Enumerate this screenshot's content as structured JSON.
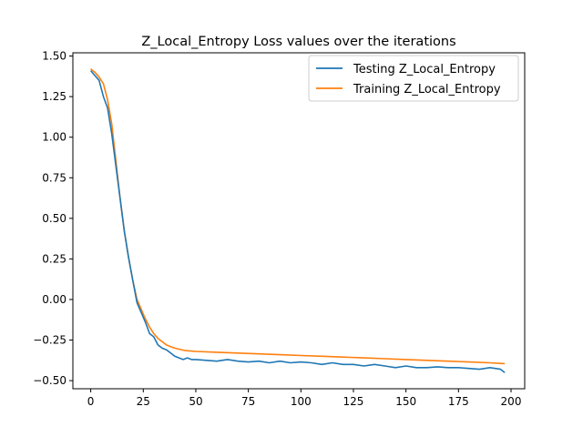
{
  "chart_data": {
    "type": "line",
    "title": "Z_Local_Entropy Loss values over the iterations",
    "xlabel": "",
    "ylabel": "",
    "xlim": [
      -8.5,
      206.5
    ],
    "ylim": [
      -0.55,
      1.52
    ],
    "xticks": [
      0,
      25,
      50,
      75,
      100,
      125,
      150,
      175,
      200
    ],
    "yticks": [
      -0.5,
      -0.25,
      0.0,
      0.25,
      0.5,
      0.75,
      1.0,
      1.25,
      1.5
    ],
    "xtick_labels": [
      "0",
      "25",
      "50",
      "75",
      "100",
      "125",
      "150",
      "175",
      "200"
    ],
    "ytick_labels": [
      "−0.50",
      "−0.25",
      "0.00",
      "0.25",
      "0.50",
      "0.75",
      "1.00",
      "1.25",
      "1.50"
    ],
    "grid": false,
    "legend_position": "top-right",
    "series": [
      {
        "name": "Testing Z_Local_Entropy",
        "color": "#1f77b4",
        "x": [
          0,
          2,
          4,
          6,
          8,
          10,
          12,
          14,
          16,
          18,
          20,
          22,
          24,
          26,
          28,
          30,
          32,
          34,
          36,
          38,
          40,
          42,
          44,
          46,
          48,
          50,
          55,
          60,
          65,
          70,
          75,
          80,
          85,
          90,
          95,
          100,
          105,
          110,
          115,
          120,
          125,
          130,
          135,
          140,
          145,
          150,
          155,
          160,
          165,
          170,
          175,
          180,
          185,
          190,
          195,
          197
        ],
        "y": [
          1.41,
          1.38,
          1.35,
          1.25,
          1.18,
          1.02,
          0.82,
          0.62,
          0.42,
          0.26,
          0.12,
          -0.02,
          -0.08,
          -0.14,
          -0.21,
          -0.23,
          -0.28,
          -0.3,
          -0.31,
          -0.33,
          -0.35,
          -0.36,
          -0.37,
          -0.36,
          -0.37,
          -0.37,
          -0.375,
          -0.38,
          -0.37,
          -0.38,
          -0.385,
          -0.38,
          -0.39,
          -0.38,
          -0.39,
          -0.385,
          -0.39,
          -0.4,
          -0.39,
          -0.4,
          -0.4,
          -0.41,
          -0.4,
          -0.41,
          -0.42,
          -0.41,
          -0.42,
          -0.42,
          -0.415,
          -0.42,
          -0.42,
          -0.425,
          -0.43,
          -0.42,
          -0.43,
          -0.45
        ]
      },
      {
        "name": "Training Z_Local_Entropy",
        "color": "#ff7f0e",
        "x": [
          0,
          2,
          4,
          6,
          8,
          10,
          12,
          14,
          16,
          18,
          20,
          22,
          24,
          26,
          28,
          30,
          32,
          34,
          36,
          38,
          40,
          45,
          50,
          60,
          70,
          80,
          90,
          100,
          110,
          120,
          130,
          140,
          150,
          160,
          170,
          180,
          190,
          197
        ],
        "y": [
          1.42,
          1.4,
          1.37,
          1.33,
          1.23,
          1.08,
          0.85,
          0.62,
          0.42,
          0.26,
          0.12,
          0.0,
          -0.06,
          -0.12,
          -0.17,
          -0.21,
          -0.24,
          -0.26,
          -0.28,
          -0.29,
          -0.3,
          -0.315,
          -0.32,
          -0.325,
          -0.33,
          -0.335,
          -0.34,
          -0.345,
          -0.35,
          -0.355,
          -0.36,
          -0.365,
          -0.37,
          -0.375,
          -0.38,
          -0.385,
          -0.39,
          -0.395
        ]
      }
    ]
  }
}
